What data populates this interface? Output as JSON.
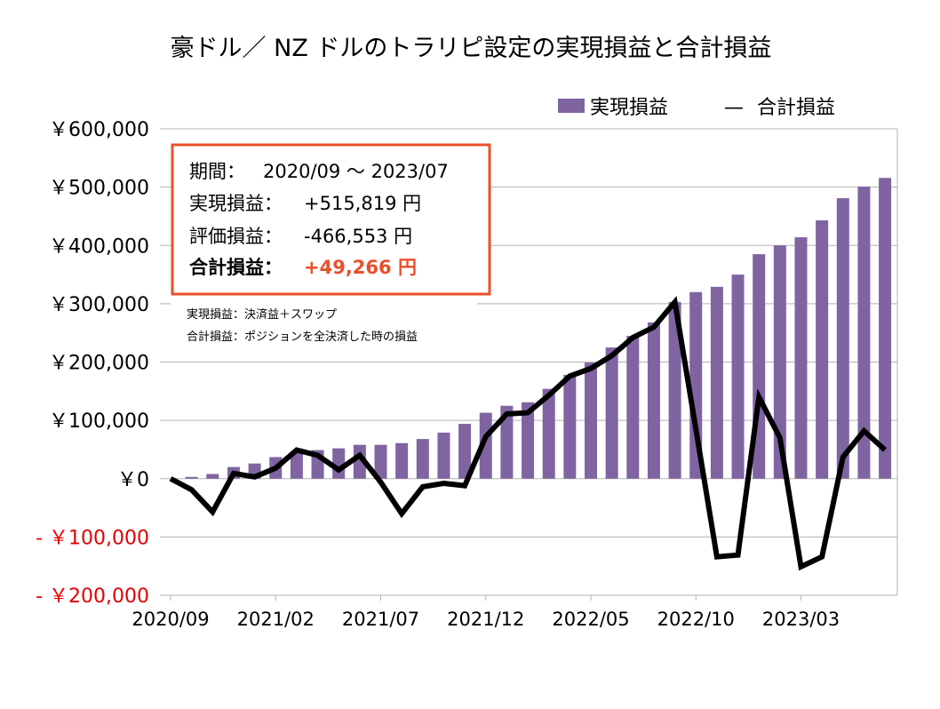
{
  "chart_data": {
    "type": "bar+line",
    "title": "豪ドル／ NZ ドルのトラリピ設定の実現損益と合計損益",
    "categories": [
      "2020/09",
      "2020/10",
      "2020/11",
      "2020/12",
      "2021/01",
      "2021/02",
      "2021/03",
      "2021/04",
      "2021/05",
      "2021/06",
      "2021/07",
      "2021/08",
      "2021/09",
      "2021/10",
      "2021/11",
      "2021/12",
      "2022/01",
      "2022/02",
      "2022/03",
      "2022/04",
      "2022/05",
      "2022/06",
      "2022/07",
      "2022/08",
      "2022/09",
      "2022/10",
      "2022/11",
      "2022/12",
      "2023/01",
      "2023/02",
      "2023/03",
      "2023/04",
      "2023/05",
      "2023/06",
      "2023/07"
    ],
    "x_tick_labels": [
      "2020/09",
      "2021/02",
      "2021/07",
      "2021/12",
      "2022/05",
      "2022/10",
      "2023/03"
    ],
    "y_tick_labels": [
      "￥600,000",
      "￥500,000",
      "￥400,000",
      "￥300,000",
      "￥200,000",
      "￥100,000",
      "￥0",
      "- ￥100,000",
      "- ￥200,000"
    ],
    "y_tick_values": [
      600000,
      500000,
      400000,
      300000,
      200000,
      100000,
      0,
      -100000,
      -200000
    ],
    "ylim": [
      -200000,
      600000
    ],
    "grid": true,
    "legend_position": "top-right",
    "series": [
      {
        "name": "実現損益",
        "type": "bar",
        "color": "#8064a2",
        "values": [
          0,
          3000,
          8000,
          20000,
          26000,
          37000,
          47000,
          49000,
          52000,
          58000,
          58000,
          61000,
          68000,
          79000,
          94000,
          113000,
          125000,
          131000,
          154000,
          178000,
          199000,
          225000,
          245000,
          268000,
          303000,
          320000,
          329000,
          350000,
          385000,
          400000,
          414000,
          443000,
          481000,
          501000,
          515819
        ]
      },
      {
        "name": "合計損益",
        "type": "line",
        "color": "#000000",
        "values": [
          0,
          -19000,
          -57000,
          9000,
          3000,
          18000,
          49000,
          40000,
          15000,
          40000,
          -6000,
          -60000,
          -14000,
          -8000,
          -12000,
          72000,
          111000,
          113000,
          143000,
          176000,
          189000,
          211000,
          242000,
          260000,
          303000,
          85000,
          -134000,
          -131000,
          140000,
          70000,
          -151000,
          -134000,
          37000,
          82000,
          49266
        ]
      }
    ]
  },
  "legend": {
    "bar_label": "実現損益",
    "line_symbol": "—",
    "line_label": "合計損益"
  },
  "summary_box": {
    "period_label": "期間：",
    "period_value": "2020/09 ～ 2023/07",
    "realized_label": "実現損益：",
    "realized_value": "+515,819 円",
    "unrealized_label": "評価損益：",
    "unrealized_value": "-466,553 円",
    "total_label": "合計損益：",
    "total_value": "+49,266 円",
    "border_color": "#e8502a",
    "total_color": "#e8502a"
  },
  "notes": {
    "line1": "実現損益：決済益＋スワップ",
    "line2": "合計損益：ポジションを全決済した時の損益"
  },
  "negative_tick_color": "#e00000"
}
